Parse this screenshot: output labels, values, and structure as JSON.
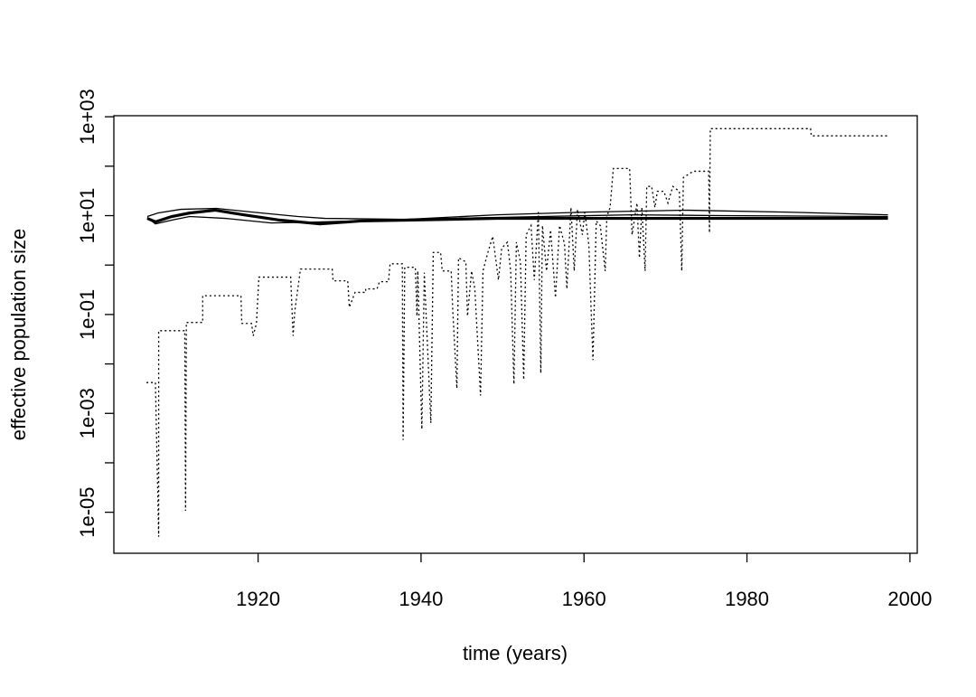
{
  "chart_data": {
    "type": "line",
    "xlabel": "time (years)",
    "ylabel": "effective population size",
    "ylog": true,
    "xlim": [
      1902.3,
      2000.9
    ],
    "ylim": [
      1.48e-06,
      1050
    ],
    "xticks": [
      1920,
      1940,
      1960,
      1980,
      2000
    ],
    "yticks": [
      {
        "value": 1000,
        "label": "1e+03"
      },
      {
        "value": 10,
        "label": "1e+01"
      },
      {
        "value": 0.1,
        "label": "1e-01"
      },
      {
        "value": 0.001,
        "label": "1e-03"
      },
      {
        "value": 1e-05,
        "label": "1e-05"
      }
    ],
    "yticks_minor": [
      100,
      1,
      0.01,
      0.0001
    ],
    "series": [
      {
        "color": "#000000",
        "dash": "dotted",
        "width": 1.3,
        "x": [
          1906.3,
          1907.4,
          1907.8,
          1907.8,
          1911.0,
          1911.1,
          1911.2,
          1913.2,
          1913.2,
          1917.9,
          1918.0,
          1919.2,
          1919.4,
          1919.8,
          1920.1,
          1924.0,
          1924.3,
          1924.5,
          1925.2,
          1929.1,
          1929.2,
          1931.0,
          1931.2,
          1931.9,
          1933.2,
          1933.2,
          1934.6,
          1934.9,
          1936.0,
          1936.2,
          1937.7,
          1937.8,
          1938.0,
          1939.3,
          1939.5,
          1939.6,
          1940.1,
          1940.4,
          1941.2,
          1941.5,
          1942.4,
          1942.6,
          1943.7,
          1943.9,
          1944.4,
          1944.6,
          1945.5,
          1945.7,
          1946.2,
          1946.6,
          1947.3,
          1947.6,
          1948.2,
          1948.8,
          1949.5,
          1949.9,
          1950.6,
          1951.0,
          1951.4,
          1951.7,
          1952.2,
          1952.6,
          1952.9,
          1953.5,
          1953.9,
          1954.4,
          1954.7,
          1954.9,
          1955.4,
          1955.9,
          1956.5,
          1957.0,
          1957.6,
          1957.9,
          1958.4,
          1958.8,
          1959.2,
          1959.8,
          1960.1,
          1960.6,
          1960.9,
          1961.1,
          1961.5,
          1962.0,
          1962.6,
          1962.8,
          1963.2,
          1963.6,
          1965.6,
          1965.9,
          1966.5,
          1966.8,
          1967.1,
          1967.5,
          1967.7,
          1968.3,
          1968.7,
          1969.0,
          1969.8,
          1970.3,
          1970.9,
          1971.7,
          1972.0,
          1972.2,
          1973.4,
          1975.3,
          1975.4,
          1975.5,
          1987.8,
          1987.9,
          1997.3
        ],
        "values": [
          0.0042,
          0.0042,
          3.2e-06,
          0.047,
          0.047,
          1.07e-05,
          0.069,
          0.069,
          0.24,
          0.24,
          0.066,
          0.066,
          0.037,
          0.066,
          0.57,
          0.57,
          0.037,
          0.115,
          0.83,
          0.83,
          0.48,
          0.48,
          0.14,
          0.28,
          0.28,
          0.33,
          0.33,
          0.46,
          0.46,
          1.06,
          1.06,
          0.00029,
          0.9,
          0.9,
          0.093,
          0.76,
          0.00048,
          0.7,
          0.00064,
          1.8,
          1.8,
          0.76,
          0.76,
          0.115,
          0.0032,
          1.4,
          1.16,
          0.093,
          0.76,
          0.33,
          0.0023,
          0.76,
          1.8,
          3.8,
          0.5,
          2.2,
          2.9,
          0.76,
          0.0039,
          2.9,
          1.16,
          0.0048,
          4.1,
          6.3,
          0.5,
          11.8,
          0.0065,
          6.3,
          0.76,
          5.1,
          0.22,
          6.3,
          2.7,
          0.33,
          14.6,
          0.76,
          13.4,
          4.1,
          11.8,
          2.5,
          0.093,
          0.012,
          7.8,
          6.3,
          0.76,
          9.6,
          14.6,
          90,
          90,
          4.1,
          18,
          1.4,
          14.6,
          0.76,
          39,
          39,
          14.6,
          31,
          31,
          18,
          39,
          31,
          0.76,
          59,
          79,
          79,
          4.5,
          575,
          575,
          410,
          410
        ]
      },
      {
        "color": "#000000",
        "dash": "solid",
        "width": 3.2,
        "x": [
          1906.4,
          1907.4,
          1909.4,
          1911.6,
          1914.7,
          1918.2,
          1922.7,
          1927.6,
          1932.6,
          1938.2,
          1949.3,
          1960.4,
          1997.3
        ],
        "values": [
          8.8,
          7.5,
          9.6,
          11.3,
          12.9,
          10.4,
          8.1,
          6.8,
          7.8,
          8.1,
          8.8,
          8.8,
          8.8
        ]
      },
      {
        "color": "#000000",
        "dash": "solid",
        "width": 1.3,
        "x": [
          1906.4,
          1907.7,
          1910.5,
          1914.9,
          1919.3,
          1924.9,
          1928.2,
          1938.2,
          1949.3,
          1960.4,
          1972.5,
          1984.7,
          1997.3
        ],
        "values": [
          9.6,
          11.3,
          13.4,
          14,
          11.8,
          9.6,
          8.8,
          8.4,
          10.4,
          11.8,
          12.9,
          11.8,
          10.4
        ]
      },
      {
        "color": "#000000",
        "dash": "solid",
        "width": 1.3,
        "x": [
          1906.4,
          1907.4,
          1909.4,
          1911.6,
          1916.0,
          1921.6,
          1927.1,
          1938.2,
          1954.8,
          1965.9,
          1977.0,
          1997.3
        ],
        "values": [
          9.2,
          6.8,
          8.1,
          9.6,
          8.8,
          7.1,
          7.4,
          8.4,
          9.6,
          10.4,
          10,
          9.6
        ]
      }
    ]
  }
}
